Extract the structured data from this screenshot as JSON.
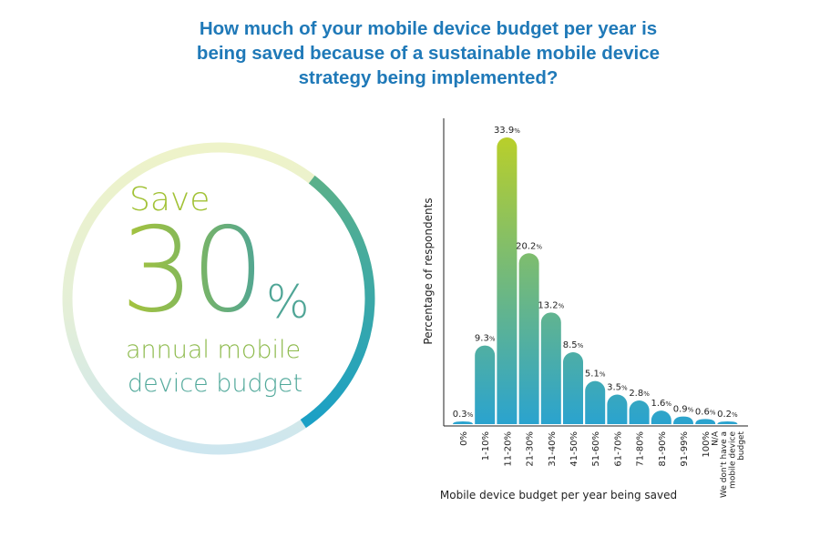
{
  "title_lines": [
    "How much of your mobile device budget per year is",
    "being saved because of a sustainable mobile device",
    "strategy being implemented?"
  ],
  "hero": {
    "save_word": "Save",
    "number": "30",
    "percent_sign": "%",
    "line1": "annual mobile",
    "line2": "device budget",
    "gauge_fraction": 0.3
  },
  "chart_data": {
    "type": "bar",
    "xlabel": "Mobile device budget per year being saved",
    "ylabel": "Percentage of respondents",
    "categories": [
      "0%",
      "1-10%",
      "11-20%",
      "21-30%",
      "31-40%",
      "41-50%",
      "51-60%",
      "61-70%",
      "71-80%",
      "81-90%",
      "91-99%",
      "100%",
      "N/A\nWe don't have a\nmobile device\nbudget"
    ],
    "values": [
      0.3,
      9.3,
      33.9,
      20.2,
      13.2,
      8.5,
      5.1,
      3.5,
      2.8,
      1.6,
      0.9,
      0.6,
      0.2
    ],
    "value_labels": [
      "0.3",
      "9.3",
      "33.9",
      "20.2",
      "13.2",
      "8.5",
      "5.1",
      "3.5",
      "2.8",
      "1.6",
      "0.9",
      "0.6",
      "0.2"
    ],
    "value_unit": "%",
    "ylim": [
      0,
      35
    ],
    "grid": false,
    "colors": {
      "top": "#b9cf2a",
      "bottom": "#2aa3cf"
    }
  }
}
